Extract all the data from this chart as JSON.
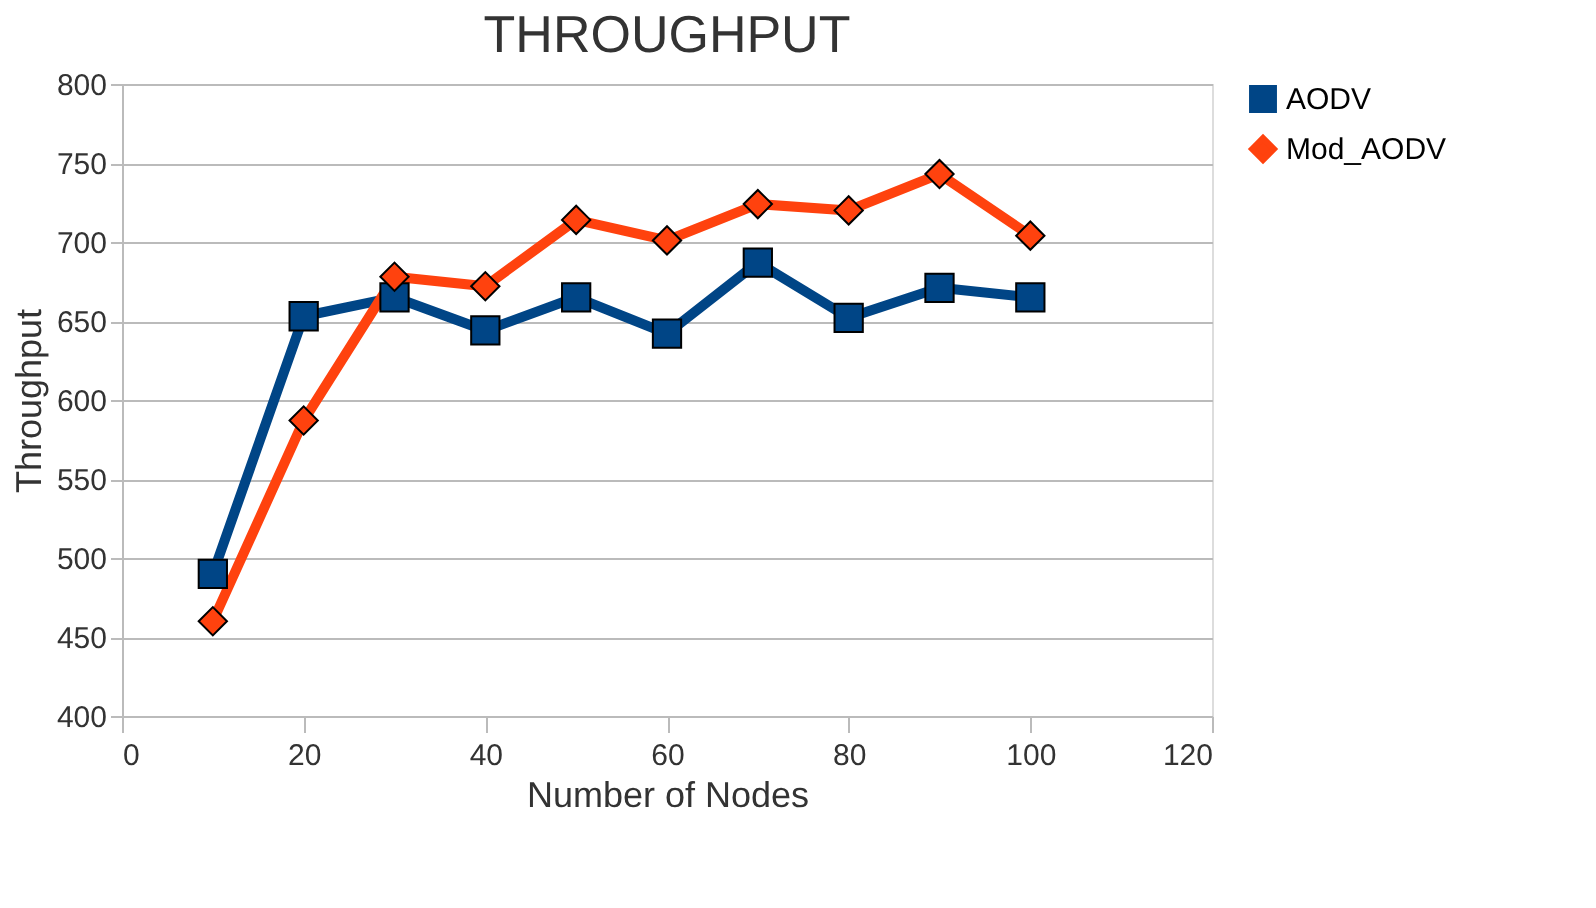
{
  "chart_data": {
    "type": "line",
    "title": "THROUGHPUT",
    "xlabel": "Number of Nodes",
    "ylabel": "Throughput",
    "x": [
      10,
      20,
      30,
      40,
      50,
      60,
      70,
      80,
      90,
      100
    ],
    "series": [
      {
        "name": "AODV",
        "color": "#004586",
        "marker": "square",
        "values": [
          490,
          653,
          665,
          644,
          665,
          642,
          687,
          652,
          671,
          665
        ]
      },
      {
        "name": "Mod_AODV",
        "color": "#ff420e",
        "marker": "diamond",
        "values": [
          460,
          587,
          678,
          672,
          714,
          701,
          724,
          720,
          743,
          704
        ]
      }
    ],
    "xlim": [
      0,
      120
    ],
    "xticks": [
      0,
      20,
      40,
      60,
      80,
      100,
      120
    ],
    "ylim": [
      400,
      800
    ],
    "yticks": [
      400,
      450,
      500,
      550,
      600,
      650,
      700,
      750,
      800
    ],
    "grid": "y",
    "legend": "right",
    "line_style": "solid"
  }
}
